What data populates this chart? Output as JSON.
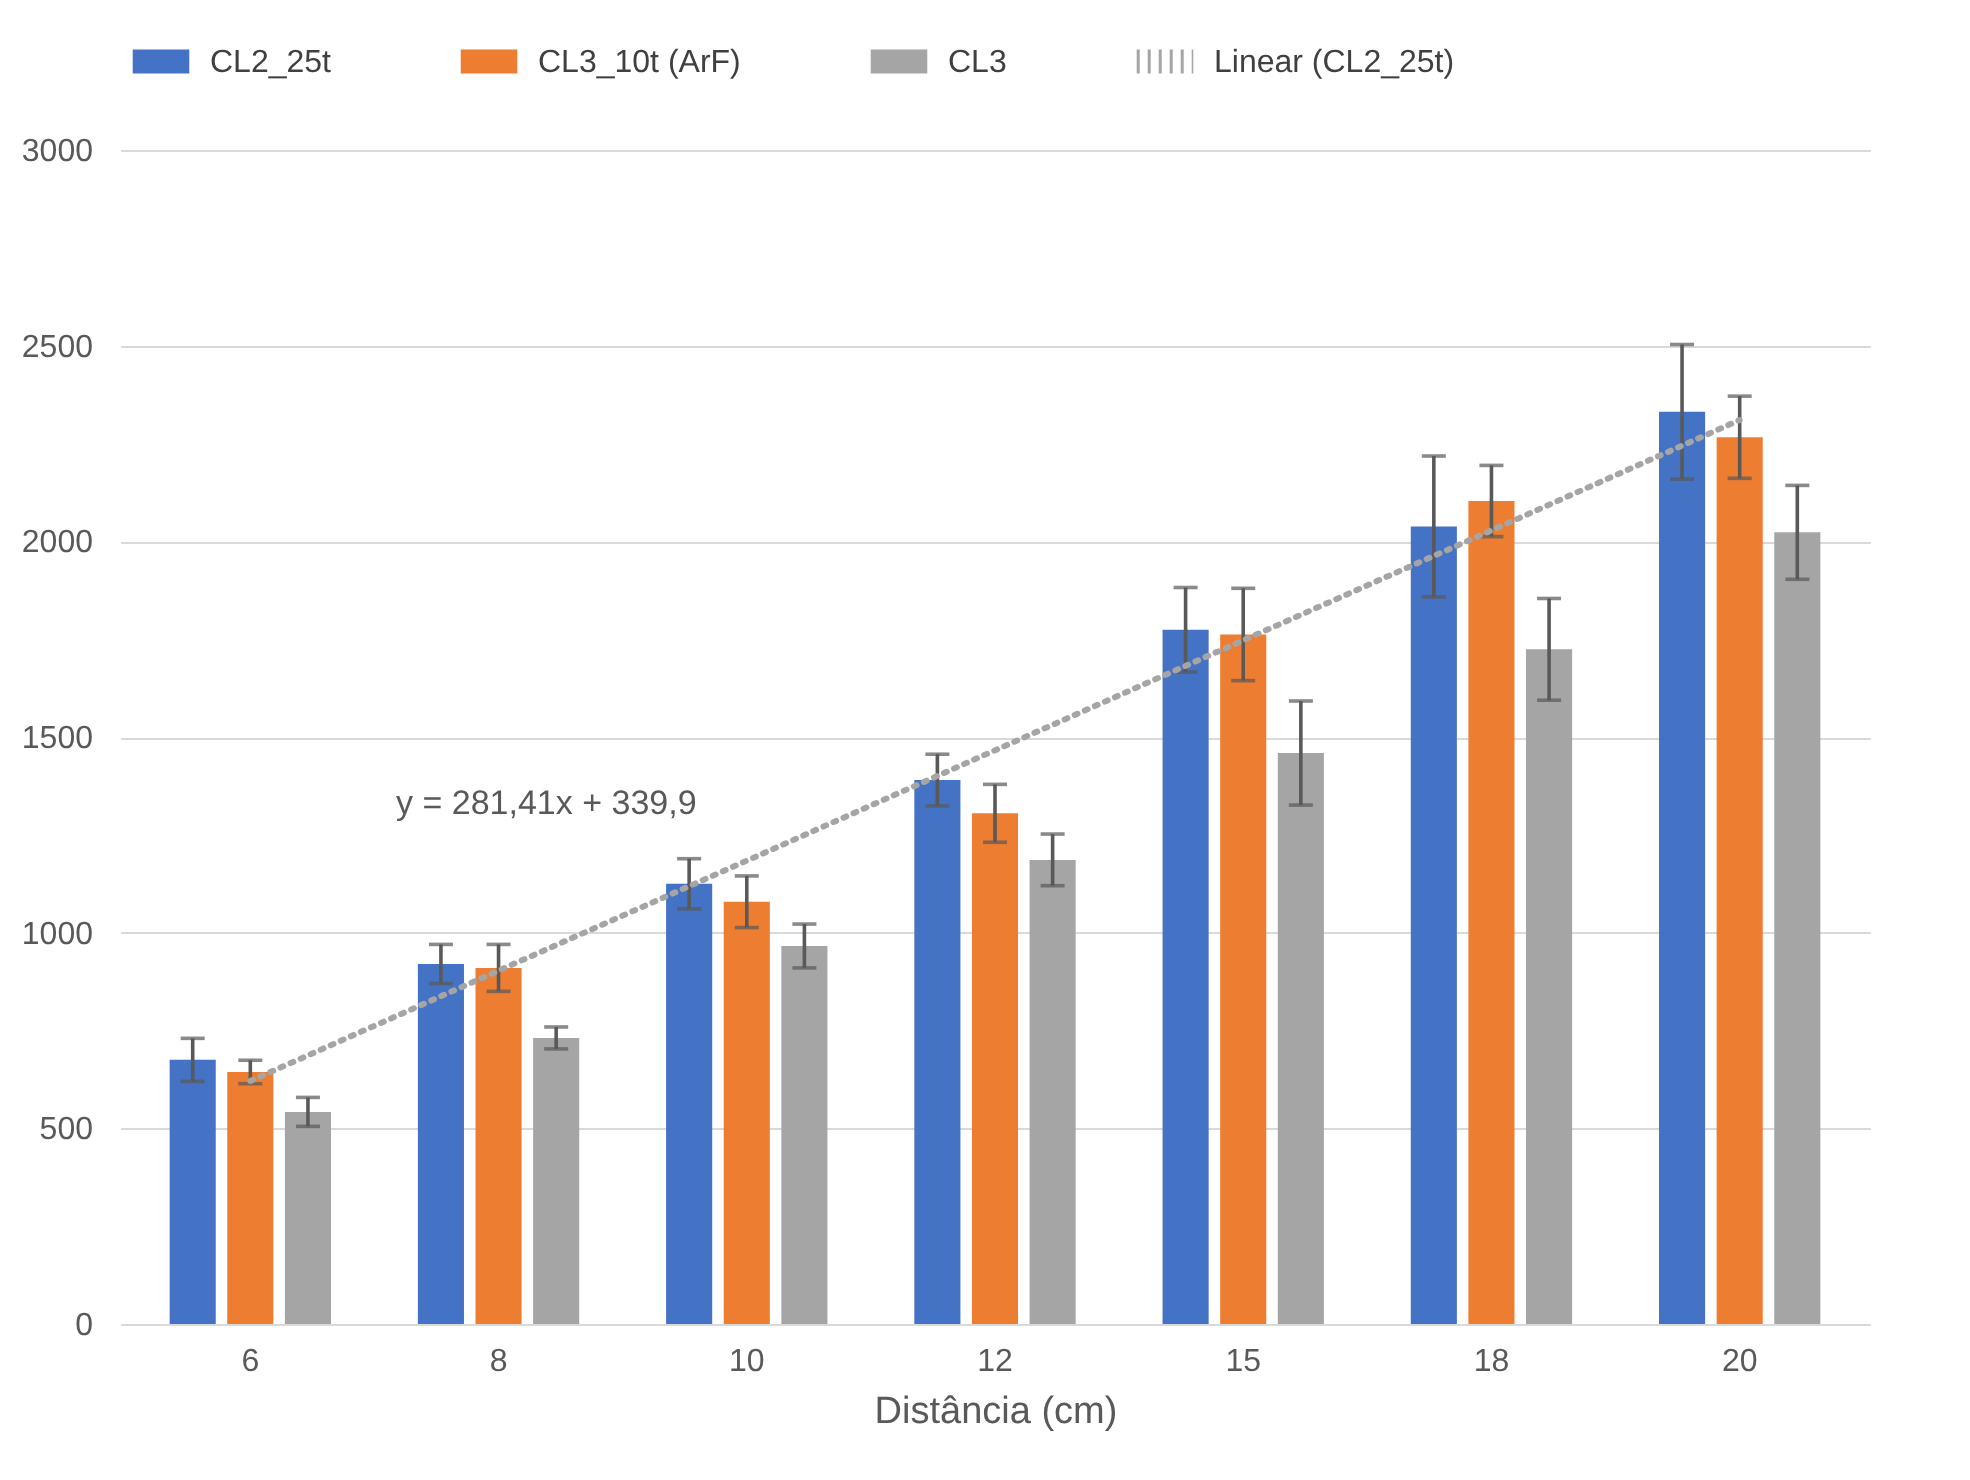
{
  "chart_data": {
    "type": "bar",
    "xlabel": "Distância (cm)",
    "categories": [
      "6",
      "8",
      "10",
      "12",
      "15",
      "18",
      "20"
    ],
    "series": [
      {
        "name": "CL2_25t",
        "color": "#4472c4",
        "values": [
          675,
          920,
          1125,
          1390,
          1774,
          2038,
          2331
        ],
        "errors": [
          55,
          50,
          64,
          66,
          108,
          180,
          172
        ]
      },
      {
        "name": "CL3_10t (ArF)",
        "color": "#ed7d31",
        "values": [
          644,
          910,
          1079,
          1305,
          1762,
          2103,
          2266
        ],
        "errors": [
          30,
          60,
          66,
          74,
          118,
          91,
          105
        ]
      },
      {
        "name": "CL3",
        "color": "#a5a5a5",
        "values": [
          542,
          731,
          966,
          1186,
          1459,
          1724,
          2023
        ],
        "errors": [
          37,
          28,
          56,
          66,
          133,
          130,
          120
        ]
      },
      {
        "name": "Linear (CL2_25t)",
        "type": "line",
        "color": "#a5a5a5",
        "line_style": "dotted",
        "values": [
          621,
          903,
          1184,
          1466,
          1747,
          2028,
          2310
        ]
      }
    ],
    "ylim": [
      0,
      3000
    ],
    "yticks": [
      0,
      500,
      1000,
      1500,
      2000,
      2500,
      3000
    ],
    "grid": "y",
    "legend": "top",
    "annotations": [
      "y = 281,41x + 339,9"
    ]
  }
}
